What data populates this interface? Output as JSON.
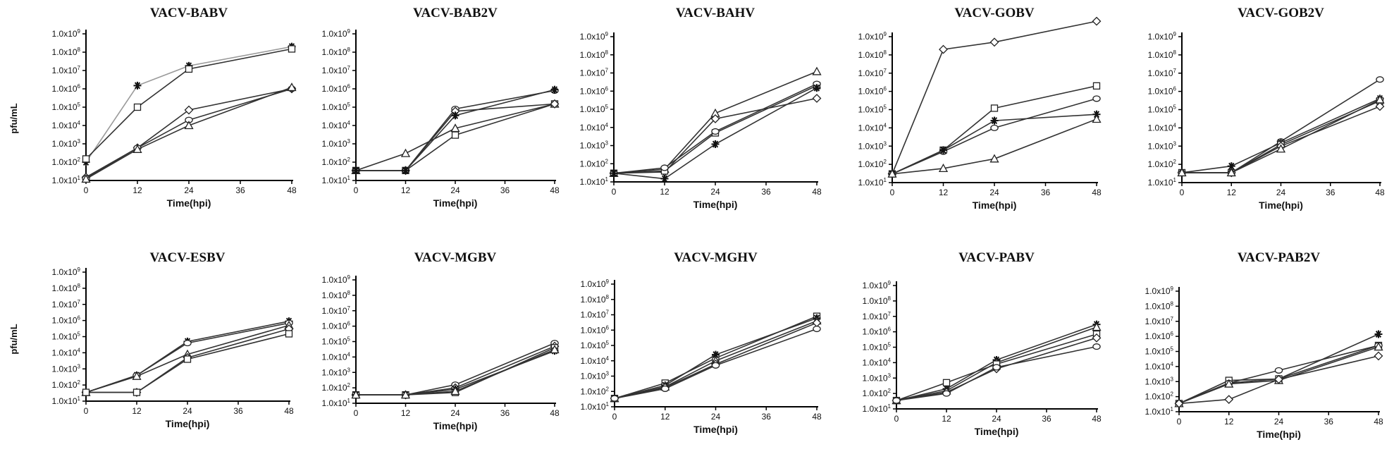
{
  "ylabels": [
    "pfu/mL",
    "pfu/mL"
  ],
  "chart_data": [
    {
      "type": "line",
      "title": "VACV-BABV",
      "xlabel": "Time(hpi)",
      "ylabel": "pfu/mL",
      "x": [
        0,
        12,
        24,
        48
      ],
      "xlim": [
        0,
        48
      ],
      "ylim": [
        1,
        9
      ],
      "y_scale": "log10",
      "grid": false,
      "x_ticks": [
        "0",
        "12",
        "24",
        "36",
        "48"
      ],
      "y_ticks": [
        "1.0x10^1",
        "1.0x10^2",
        "1.0x10^3",
        "1.0x10^4",
        "1.0x10^5",
        "1.0x10^6",
        "1.0x10^7",
        "1.0x10^8",
        "1.0x10^9"
      ],
      "series": [
        {
          "marker": "star",
          "color": "#9a9a9a",
          "values": [
            100.0,
            1500000.0,
            18000000.0,
            200000000.0
          ]
        },
        {
          "marker": "square",
          "color": "#333333",
          "values": [
            150.0,
            100000.0,
            12000000.0,
            150000000.0
          ]
        },
        {
          "marker": "diamond",
          "color": "#333333",
          "values": [
            15.0,
            600.0,
            70000.0,
            1000000.0
          ]
        },
        {
          "marker": "circle",
          "color": "#333333",
          "values": [
            13.0,
            600.0,
            20000.0,
            1000000.0
          ]
        },
        {
          "marker": "triangle",
          "color": "#333333",
          "values": [
            12.0,
            500.0,
            10000.0,
            1200000.0
          ]
        }
      ]
    },
    {
      "type": "line",
      "title": "VACV-BAB2V",
      "xlabel": "Time(hpi)",
      "ylabel": "",
      "x": [
        0,
        12,
        24,
        48
      ],
      "xlim": [
        0,
        48
      ],
      "ylim": [
        1,
        9
      ],
      "y_scale": "log10",
      "grid": false,
      "x_ticks": [
        "0",
        "12",
        "24",
        "36",
        "48"
      ],
      "y_ticks": [
        "1.0x10^1",
        "1.0x10^2",
        "1.0x10^3",
        "1.0x10^4",
        "1.0x10^5",
        "1.0x10^6",
        "1.0x10^7",
        "1.0x10^8",
        "1.0x10^9"
      ],
      "series": [
        {
          "marker": "triangle",
          "color": "#333333",
          "values": [
            35.0,
            300.0,
            7000.0,
            150000.0
          ]
        },
        {
          "marker": "square",
          "color": "#333333",
          "values": [
            35.0,
            35.0,
            3000.0,
            150000.0
          ]
        },
        {
          "marker": "circle",
          "color": "#333333",
          "values": [
            35.0,
            35.0,
            80000.0,
            800000.0
          ]
        },
        {
          "marker": "diamond",
          "color": "#333333",
          "values": [
            35.0,
            35.0,
            60000.0,
            150000.0
          ]
        },
        {
          "marker": "star",
          "color": "#333333",
          "values": [
            35.0,
            35.0,
            35000.0,
            900000.0
          ]
        }
      ]
    },
    {
      "type": "line",
      "title": "VACV-BAHV",
      "xlabel": "Time(hpi)",
      "ylabel": "",
      "x": [
        0,
        12,
        24,
        48
      ],
      "xlim": [
        0,
        48
      ],
      "ylim": [
        1,
        9
      ],
      "y_scale": "log10",
      "grid": false,
      "x_ticks": [
        "0",
        "12",
        "24",
        "36",
        "48"
      ],
      "y_ticks": [
        "1.0x10^1",
        "1.0x10^2",
        "1.0x10^3",
        "1.0x10^4",
        "1.0x10^5",
        "1.0x10^6",
        "1.0x10^7",
        "1.0x10^8",
        "1.0x10^9"
      ],
      "series": [
        {
          "marker": "triangle",
          "color": "#333333",
          "values": [
            30.0,
            50.0,
            60000.0,
            12000000.0
          ]
        },
        {
          "marker": "diamond",
          "color": "#333333",
          "values": [
            30.0,
            35.0,
            30000.0,
            400000.0
          ]
        },
        {
          "marker": "square",
          "color": "#333333",
          "values": [
            30.0,
            40.0,
            5000.0,
            2000000.0
          ]
        },
        {
          "marker": "circle",
          "color": "#333333",
          "values": [
            30.0,
            60.0,
            6000.0,
            2500000.0
          ]
        },
        {
          "marker": "star",
          "color": "#333333",
          "values": [
            30.0,
            15.0,
            1200.0,
            1500000.0
          ]
        }
      ]
    },
    {
      "type": "line",
      "title": "VACV-GOBV",
      "xlabel": "Time(hpi)",
      "ylabel": "",
      "x": [
        0,
        12,
        24,
        48
      ],
      "xlim": [
        0,
        48
      ],
      "ylim": [
        1,
        9
      ],
      "y_scale": "log10",
      "grid": false,
      "x_ticks": [
        "0",
        "12",
        "24",
        "36",
        "48"
      ],
      "y_ticks": [
        "1.0x10^1",
        "1.0x10^2",
        "1.0x10^3",
        "1.0x10^4",
        "1.0x10^5",
        "1.0x10^6",
        "1.0x10^7",
        "1.0x10^8",
        "1.0x10^9"
      ],
      "series": [
        {
          "marker": "diamond",
          "color": "#333333",
          "values": [
            30.0,
            200000000.0,
            500000000.0,
            7000000000.0
          ]
        },
        {
          "marker": "square",
          "color": "#333333",
          "values": [
            30.0,
            600.0,
            120000.0,
            2000000.0
          ]
        },
        {
          "marker": "circle",
          "color": "#333333",
          "values": [
            30.0,
            500.0,
            10000.0,
            400000.0
          ]
        },
        {
          "marker": "star",
          "color": "#333333",
          "values": [
            30.0,
            600.0,
            25000.0,
            55000.0
          ]
        },
        {
          "marker": "triangle",
          "color": "#333333",
          "values": [
            30.0,
            60.0,
            200.0,
            30000.0
          ]
        }
      ]
    },
    {
      "type": "line",
      "title": "VACV-GOB2V",
      "xlabel": "Time(hpi)",
      "ylabel": "",
      "x": [
        0,
        12,
        24,
        48
      ],
      "xlim": [
        0,
        48
      ],
      "ylim": [
        1,
        9
      ],
      "y_scale": "log10",
      "grid": false,
      "x_ticks": [
        "0",
        "12",
        "24",
        "36",
        "48"
      ],
      "y_ticks": [
        "1.0x10^1",
        "1.0x10^2",
        "1.0x10^3",
        "1.0x10^4",
        "1.0x10^5",
        "1.0x10^6",
        "1.0x10^7",
        "1.0x10^8",
        "1.0x10^9"
      ],
      "series": [
        {
          "marker": "circle",
          "color": "#333333",
          "values": [
            35.0,
            35.0,
            1800.0,
            4500000.0
          ]
        },
        {
          "marker": "star",
          "color": "#333333",
          "values": [
            35.0,
            80.0,
            1500.0,
            400000.0
          ]
        },
        {
          "marker": "square",
          "color": "#333333",
          "values": [
            35.0,
            35.0,
            1200.0,
            300000.0
          ]
        },
        {
          "marker": "diamond",
          "color": "#333333",
          "values": [
            35.0,
            35.0,
            1000.0,
            150000.0
          ]
        },
        {
          "marker": "triangle",
          "color": "#333333",
          "values": [
            35.0,
            35.0,
            700.0,
            350000.0
          ]
        }
      ]
    },
    {
      "type": "line",
      "title": "VACV-ESBV",
      "xlabel": "Time(hpi)",
      "ylabel": "pfu/mL",
      "x": [
        0,
        12,
        24,
        48
      ],
      "xlim": [
        0,
        48
      ],
      "ylim": [
        1,
        9
      ],
      "y_scale": "log10",
      "grid": false,
      "x_ticks": [
        "0",
        "12",
        "24",
        "36",
        "48"
      ],
      "y_ticks": [
        "1.0x10^1",
        "1.0x10^2",
        "1.0x10^3",
        "1.0x10^4",
        "1.0x10^5",
        "1.0x10^6",
        "1.0x10^7",
        "1.0x10^8",
        "1.0x10^9"
      ],
      "series": [
        {
          "marker": "star",
          "color": "#333333",
          "values": [
            35.0,
            400.0,
            50000.0,
            900000.0
          ]
        },
        {
          "marker": "circle",
          "color": "#333333",
          "values": [
            35.0,
            400.0,
            40000.0,
            700000.0
          ]
        },
        {
          "marker": "triangle",
          "color": "#333333",
          "values": [
            35.0,
            350.0,
            8000.0,
            500000.0
          ]
        },
        {
          "marker": "diamond",
          "color": "#333333",
          "values": [
            35.0,
            35.0,
            5000.0,
            300000.0
          ]
        },
        {
          "marker": "square",
          "color": "#333333",
          "values": [
            35.0,
            35.0,
            4000.0,
            150000.0
          ]
        }
      ]
    },
    {
      "type": "line",
      "title": "VACV-MGBV",
      "xlabel": "Time(hpi)",
      "ylabel": "",
      "x": [
        0,
        12,
        24,
        48
      ],
      "xlim": [
        0,
        48
      ],
      "ylim": [
        1,
        9
      ],
      "y_scale": "log10",
      "grid": false,
      "x_ticks": [
        "0",
        "12",
        "24",
        "36",
        "48"
      ],
      "y_ticks": [
        "1.0x10^1",
        "1.0x10^2",
        "1.0x10^3",
        "1.0x10^4",
        "1.0x10^5",
        "1.0x10^6",
        "1.0x10^7",
        "1.0x10^8",
        "1.0x10^9"
      ],
      "series": [
        {
          "marker": "circle",
          "color": "#333333",
          "values": [
            35.0,
            35.0,
            160.0,
            80000.0
          ]
        },
        {
          "marker": "diamond",
          "color": "#333333",
          "values": [
            35.0,
            35.0,
            100.0,
            50000.0
          ]
        },
        {
          "marker": "square",
          "color": "#333333",
          "values": [
            35.0,
            35.0,
            50.0,
            40000.0
          ]
        },
        {
          "marker": "star",
          "color": "#333333",
          "values": [
            35.0,
            35.0,
            80.0,
            25000.0
          ]
        },
        {
          "marker": "triangle",
          "color": "#333333",
          "values": [
            35.0,
            35.0,
            60.0,
            30000.0
          ]
        }
      ]
    },
    {
      "type": "line",
      "title": "VACV-MGHV",
      "xlabel": "Time(hpi)",
      "ylabel": "",
      "x": [
        0,
        12,
        24,
        48
      ],
      "xlim": [
        0,
        48
      ],
      "ylim": [
        1,
        9
      ],
      "y_scale": "log10",
      "grid": false,
      "x_ticks": [
        "0",
        "12",
        "24",
        "36",
        "48"
      ],
      "y_ticks": [
        "1.0x10^1",
        "1.0x10^2",
        "1.0x10^3",
        "1.0x10^4",
        "1.0x10^5",
        "1.0x10^6",
        "1.0x10^7",
        "1.0x10^8",
        "1.0x10^9"
      ],
      "series": [
        {
          "marker": "square",
          "color": "#333333",
          "values": [
            35.0,
            350.0,
            15000.0,
            8000000.0
          ]
        },
        {
          "marker": "star",
          "color": "#333333",
          "values": [
            35.0,
            250.0,
            25000.0,
            6000000.0
          ]
        },
        {
          "marker": "triangle",
          "color": "#333333",
          "values": [
            35.0,
            200.0,
            10000.0,
            4000000.0
          ]
        },
        {
          "marker": "diamond",
          "color": "#333333",
          "values": [
            35.0,
            180.0,
            6000.0,
            3000000.0
          ]
        },
        {
          "marker": "circle",
          "color": "#333333",
          "values": [
            35.0,
            150.0,
            5000.0,
            1200000.0
          ]
        }
      ]
    },
    {
      "type": "line",
      "title": "VACV-PABV",
      "xlabel": "Time(hpi)",
      "ylabel": "",
      "x": [
        0,
        12,
        24,
        48
      ],
      "xlim": [
        0,
        48
      ],
      "ylim": [
        1,
        9
      ],
      "y_scale": "log10",
      "grid": false,
      "x_ticks": [
        "0",
        "12",
        "24",
        "36",
        "48"
      ],
      "y_ticks": [
        "1.0x10^1",
        "1.0x10^2",
        "1.0x10^3",
        "1.0x10^4",
        "1.0x10^5",
        "1.0x10^6",
        "1.0x10^7",
        "1.0x10^8",
        "1.0x10^9"
      ],
      "series": [
        {
          "marker": "star",
          "color": "#333333",
          "values": [
            35.0,
            200.0,
            15000.0,
            3000000.0
          ]
        },
        {
          "marker": "triangle",
          "color": "#333333",
          "values": [
            35.0,
            150.0,
            10000.0,
            2000000.0
          ]
        },
        {
          "marker": "square",
          "color": "#333333",
          "values": [
            35.0,
            500.0,
            8000.0,
            700000.0
          ]
        },
        {
          "marker": "diamond",
          "color": "#333333",
          "values": [
            35.0,
            120.0,
            4000.0,
            400000.0
          ]
        },
        {
          "marker": "circle",
          "color": "#333333",
          "values": [
            35.0,
            100.0,
            5000.0,
            110000.0
          ]
        }
      ]
    },
    {
      "type": "line",
      "title": "VACV-PAB2V",
      "xlabel": "Time(hpi)",
      "ylabel": "",
      "x": [
        0,
        12,
        24,
        48
      ],
      "xlim": [
        0,
        48
      ],
      "ylim": [
        1,
        9
      ],
      "y_scale": "log10",
      "grid": false,
      "x_ticks": [
        "0",
        "12",
        "24",
        "36",
        "48"
      ],
      "y_ticks": [
        "1.0x10^1",
        "1.0x10^2",
        "1.0x10^3",
        "1.0x10^4",
        "1.0x10^5",
        "1.0x10^6",
        "1.0x10^7",
        "1.0x10^8",
        "1.0x10^9"
      ],
      "series": [
        {
          "marker": "star",
          "color": "#333333",
          "values": [
            35.0,
            800.0,
            1500.0,
            1400000.0
          ]
        },
        {
          "marker": "square",
          "color": "#333333",
          "values": [
            35.0,
            1200.0,
            1500.0,
            250000.0
          ]
        },
        {
          "marker": "circle",
          "color": "#333333",
          "values": [
            35.0,
            800.0,
            5500.0,
            250000.0
          ]
        },
        {
          "marker": "triangle",
          "color": "#333333",
          "values": [
            35.0,
            700.0,
            1200.0,
            200000.0
          ]
        },
        {
          "marker": "diamond",
          "color": "#333333",
          "values": [
            35.0,
            65.0,
            1400.0,
            50000.0
          ]
        }
      ]
    }
  ]
}
